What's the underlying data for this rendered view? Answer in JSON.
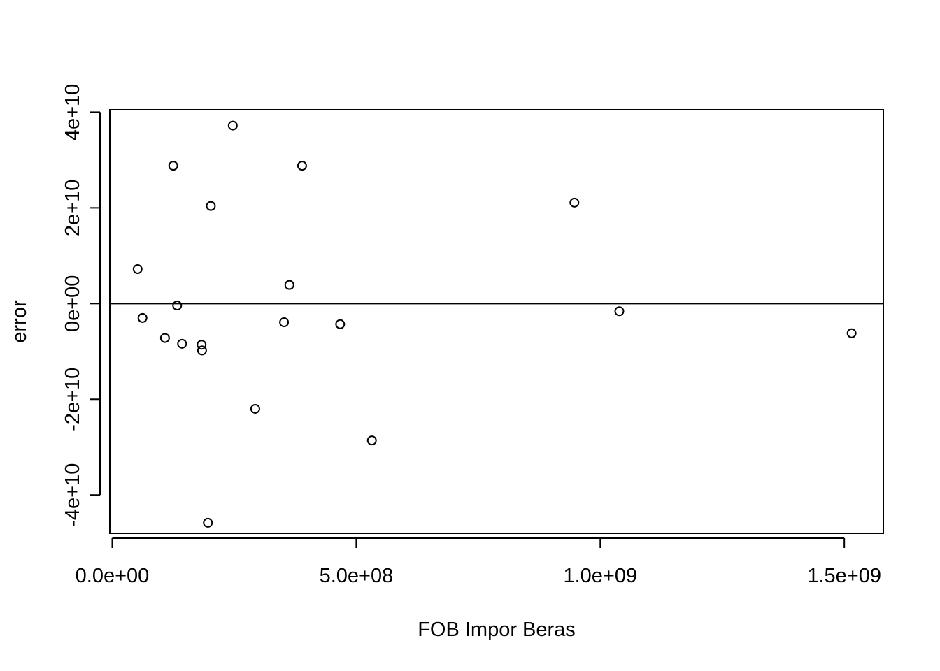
{
  "chart_data": {
    "type": "scatter",
    "title": "",
    "xlabel": "FOB Impor Beras",
    "ylabel": "error",
    "xlim": [
      -5000000,
      1580000000
    ],
    "ylim": [
      -48000000000,
      40500000000
    ],
    "x_ticks": [
      {
        "value": 0,
        "label": "0.0e+00"
      },
      {
        "value": 500000000,
        "label": "5.0e+08"
      },
      {
        "value": 1000000000,
        "label": "1.0e+09"
      },
      {
        "value": 1500000000,
        "label": "1.5e+09"
      }
    ],
    "y_ticks": [
      {
        "value": -40000000000,
        "label": "-4e+10"
      },
      {
        "value": -20000000000,
        "label": "-2e+10"
      },
      {
        "value": 0,
        "label": "0e+00"
      },
      {
        "value": 20000000000,
        "label": "2e+10"
      },
      {
        "value": 40000000000,
        "label": "4e+10"
      }
    ],
    "reference_line_y": 0,
    "grid": false,
    "legend": "none",
    "marker": "open-circle",
    "points": [
      {
        "x": 52000000,
        "y": 7200000000
      },
      {
        "x": 62000000,
        "y": -3000000000
      },
      {
        "x": 108000000,
        "y": -7200000000
      },
      {
        "x": 125000000,
        "y": 28800000000
      },
      {
        "x": 133000000,
        "y": -400000000
      },
      {
        "x": 143000000,
        "y": -8400000000
      },
      {
        "x": 183000000,
        "y": -8600000000
      },
      {
        "x": 184000000,
        "y": -9800000000
      },
      {
        "x": 196000000,
        "y": -45800000000
      },
      {
        "x": 202000000,
        "y": 20400000000
      },
      {
        "x": 247000000,
        "y": 37200000000
      },
      {
        "x": 293000000,
        "y": -22000000000
      },
      {
        "x": 352000000,
        "y": -3900000000
      },
      {
        "x": 363000000,
        "y": 3900000000
      },
      {
        "x": 389000000,
        "y": 28800000000
      },
      {
        "x": 467000000,
        "y": -4300000000
      },
      {
        "x": 532000000,
        "y": -28600000000
      },
      {
        "x": 947000000,
        "y": 21100000000
      },
      {
        "x": 1039000000,
        "y": -1600000000
      },
      {
        "x": 1515000000,
        "y": -6200000000
      }
    ]
  }
}
